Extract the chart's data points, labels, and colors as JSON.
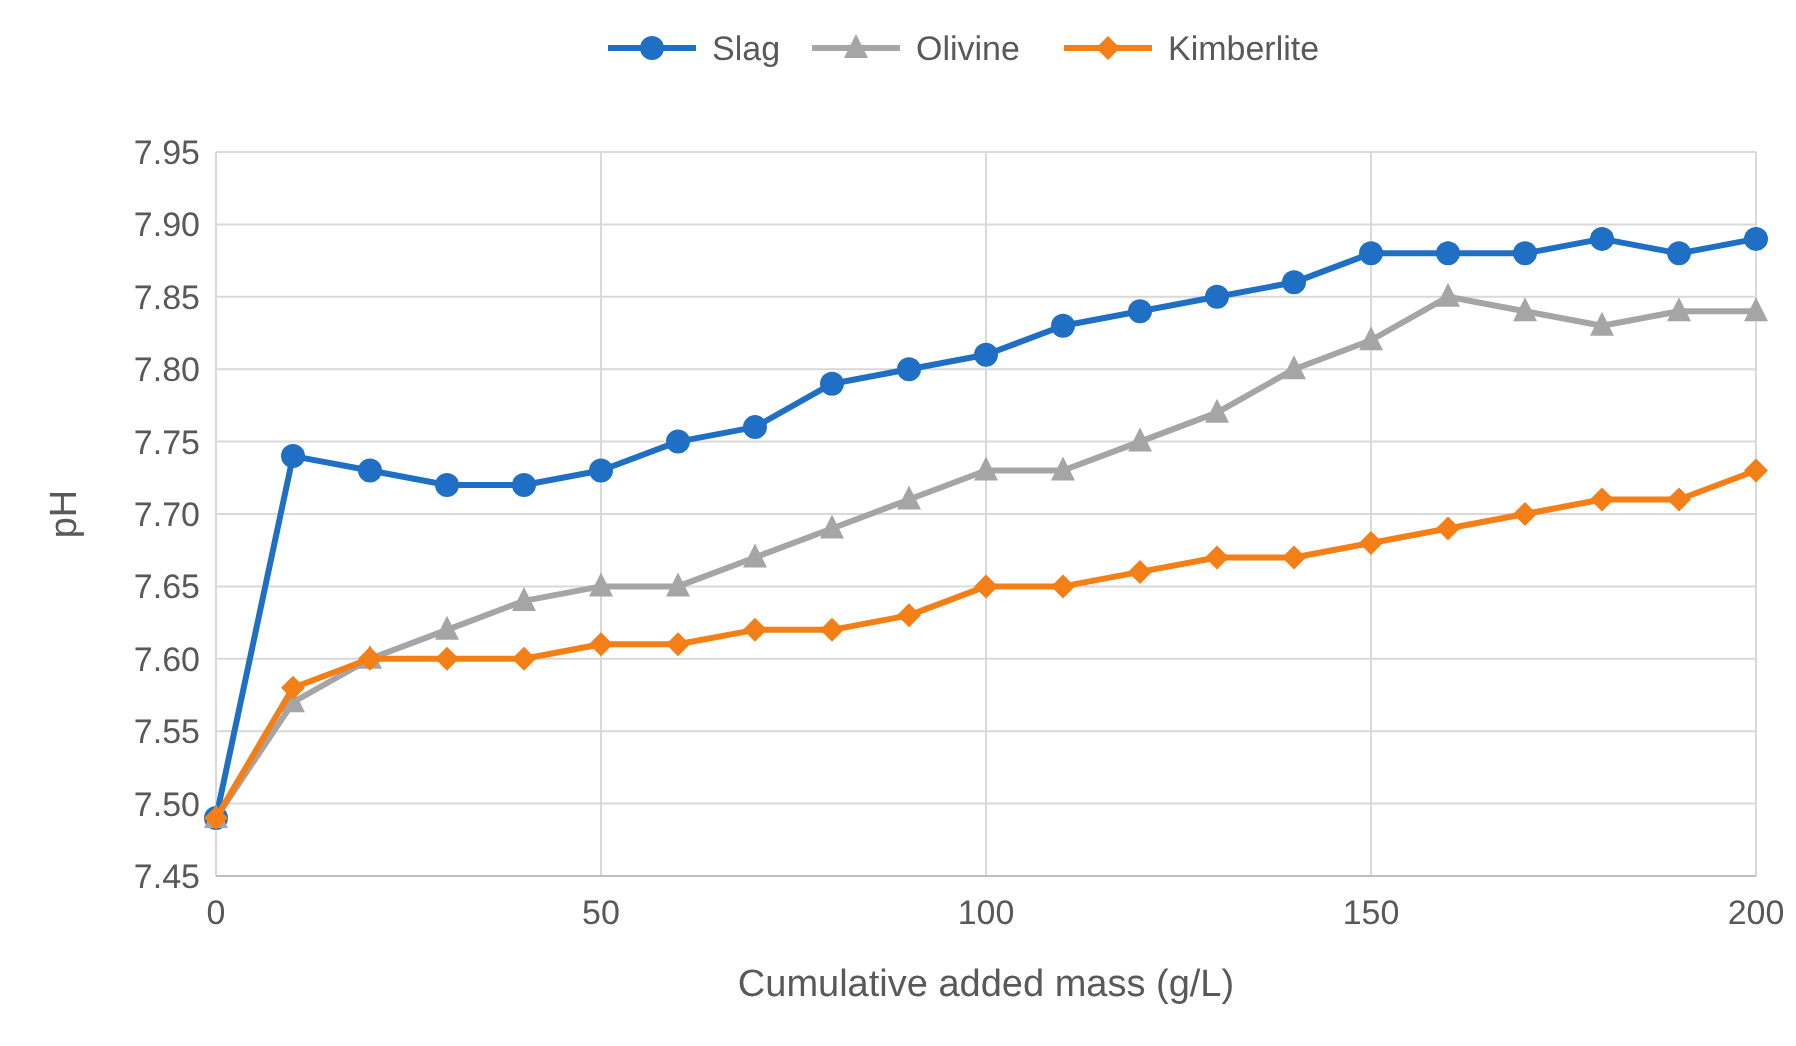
{
  "chart_data": {
    "type": "line",
    "xlabel": "Cumulative added mass (g/L)",
    "ylabel": "pH",
    "x": [
      0,
      10,
      20,
      30,
      40,
      50,
      60,
      70,
      80,
      90,
      100,
      110,
      120,
      130,
      140,
      150,
      160,
      170,
      180,
      190,
      200
    ],
    "series": [
      {
        "name": "Slag",
        "color": "#1f6fc5",
        "marker": "circle",
        "values": [
          7.49,
          7.74,
          7.73,
          7.72,
          7.72,
          7.73,
          7.75,
          7.76,
          7.79,
          7.8,
          7.81,
          7.83,
          7.84,
          7.85,
          7.86,
          7.88,
          7.88,
          7.88,
          7.89,
          7.88,
          7.89
        ]
      },
      {
        "name": "Olivine",
        "color": "#a5a5a5",
        "marker": "triangle",
        "values": [
          7.49,
          7.57,
          7.6,
          7.62,
          7.64,
          7.65,
          7.65,
          7.67,
          7.69,
          7.71,
          7.73,
          7.73,
          7.75,
          7.77,
          7.8,
          7.82,
          7.85,
          7.84,
          7.83,
          7.84,
          7.84
        ]
      },
      {
        "name": "Kimberlite",
        "color": "#f47f17",
        "marker": "diamond",
        "values": [
          7.49,
          7.58,
          7.6,
          7.6,
          7.6,
          7.61,
          7.61,
          7.62,
          7.62,
          7.63,
          7.65,
          7.65,
          7.66,
          7.67,
          7.67,
          7.68,
          7.69,
          7.7,
          7.71,
          7.71,
          7.73
        ]
      }
    ],
    "xlim": [
      0,
      200
    ],
    "xticks": [
      0,
      50,
      100,
      150,
      200
    ],
    "ylim": [
      7.45,
      7.95
    ],
    "yticks": [
      {
        "value": 7.45,
        "label": "7.45"
      },
      {
        "value": 7.5,
        "label": "7.50"
      },
      {
        "value": 7.55,
        "label": "7.55"
      },
      {
        "value": 7.6,
        "label": "7.60"
      },
      {
        "value": 7.65,
        "label": "7.65"
      },
      {
        "value": 7.7,
        "label": "7.70"
      },
      {
        "value": 7.75,
        "label": "7.75"
      },
      {
        "value": 7.8,
        "label": "7.80"
      },
      {
        "value": 7.85,
        "label": "7.85"
      },
      {
        "value": 7.9,
        "label": "7.90"
      },
      {
        "value": 7.95,
        "label": "7.95"
      }
    ],
    "grid": true,
    "legend": "top",
    "line_style": "solid"
  }
}
